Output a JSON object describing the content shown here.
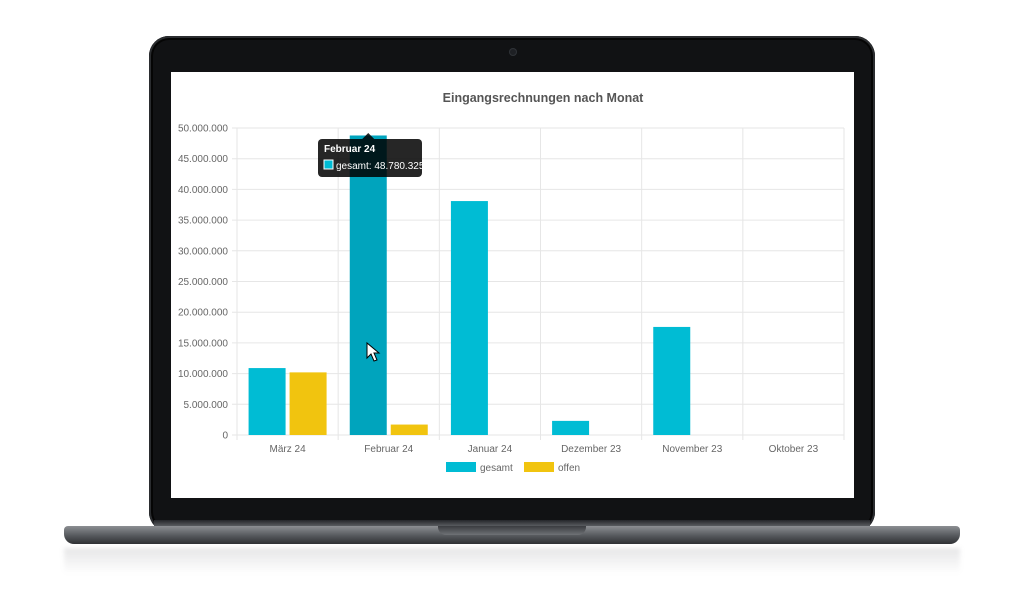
{
  "chart_data": {
    "type": "bar",
    "title": "Eingangsrechnungen nach Monat",
    "categories": [
      "März 24",
      "Februar 24",
      "Januar 24",
      "Dezember 23",
      "November 23",
      "Oktober 23"
    ],
    "series": [
      {
        "name": "gesamt",
        "color": "#00bcd4",
        "values": [
          10900000,
          48780325,
          38100000,
          2300000,
          17600000,
          0
        ]
      },
      {
        "name": "offen",
        "color": "#f1c40f",
        "values": [
          10200000,
          1700000,
          0,
          0,
          0,
          0
        ]
      }
    ],
    "yticks": [
      "50.000.000",
      "45.000.000",
      "40.000.000",
      "35.000.000",
      "30.000.000",
      "25.000.000",
      "20.000.000",
      "15.000.000",
      "10.000.000",
      "5.000.000",
      "0"
    ],
    "ylim": [
      0,
      50000000
    ],
    "grid": true,
    "legend_position": "bottom",
    "tooltip": {
      "title": "Februar 24",
      "series_label": "gesamt",
      "value_text": "48.780.325"
    }
  }
}
